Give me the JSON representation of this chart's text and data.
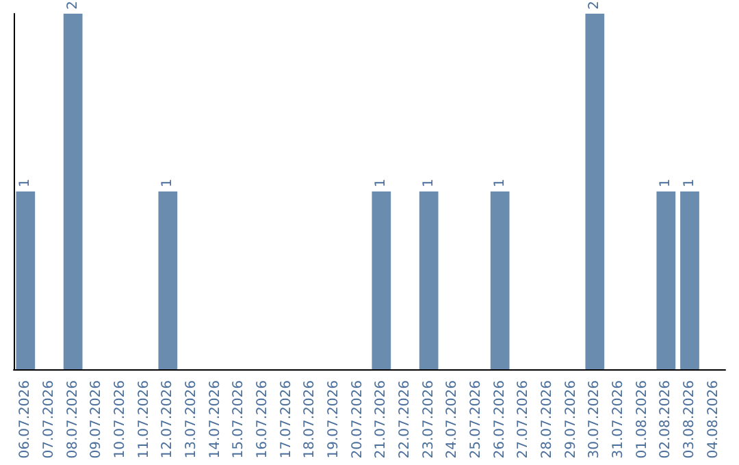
{
  "chart_data": {
    "type": "bar",
    "categories": [
      "06.07.2026",
      "07.07.2026",
      "08.07.2026",
      "09.07.2026",
      "10.07.2026",
      "11.07.2026",
      "12.07.2026",
      "13.07.2026",
      "14.07.2026",
      "15.07.2026",
      "16.07.2026",
      "17.07.2026",
      "18.07.2026",
      "19.07.2026",
      "20.07.2026",
      "21.07.2026",
      "22.07.2026",
      "23.07.2026",
      "24.07.2026",
      "25.07.2026",
      "26.07.2026",
      "27.07.2026",
      "28.07.2026",
      "29.07.2026",
      "30.07.2026",
      "31.07.2026",
      "01.08.2026",
      "02.08.2026",
      "03.08.2026",
      "04.08.2026"
    ],
    "values": [
      1,
      0,
      2,
      0,
      0,
      0,
      1,
      0,
      0,
      0,
      0,
      0,
      0,
      0,
      0,
      1,
      0,
      1,
      0,
      0,
      1,
      0,
      0,
      0,
      2,
      0,
      0,
      1,
      1,
      0
    ],
    "value_labels": [
      "1",
      null,
      "2",
      null,
      null,
      null,
      "1",
      null,
      null,
      null,
      null,
      null,
      null,
      null,
      null,
      "1",
      null,
      "1",
      null,
      null,
      "1",
      null,
      null,
      null,
      "2",
      null,
      null,
      "1",
      "1",
      null
    ],
    "color": "#6a8caf"
  }
}
